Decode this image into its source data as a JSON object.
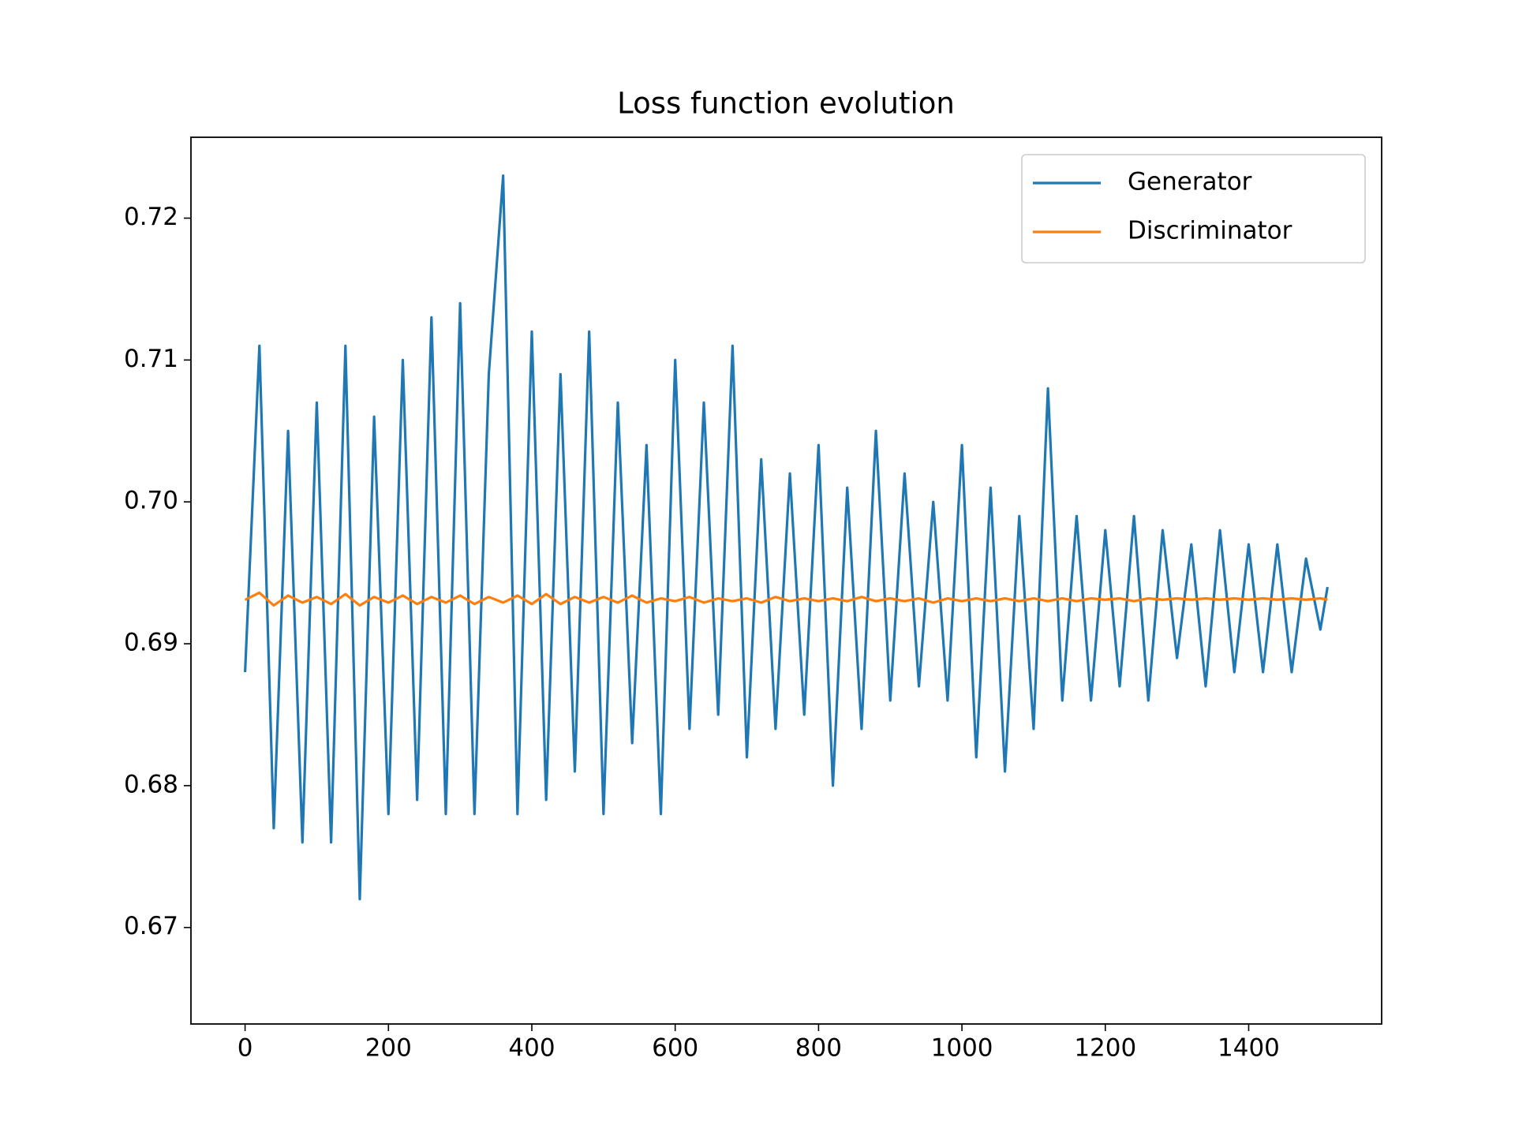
{
  "chart_data": {
    "type": "line",
    "title": "Loss function evolution",
    "x": [
      0,
      20,
      40,
      60,
      80,
      100,
      120,
      140,
      160,
      180,
      200,
      220,
      240,
      260,
      280,
      300,
      320,
      340,
      360,
      380,
      400,
      420,
      440,
      460,
      480,
      500,
      520,
      540,
      560,
      580,
      600,
      620,
      640,
      660,
      680,
      700,
      720,
      740,
      760,
      780,
      800,
      820,
      840,
      860,
      880,
      900,
      920,
      940,
      960,
      980,
      1000,
      1020,
      1040,
      1060,
      1080,
      1100,
      1120,
      1140,
      1160,
      1180,
      1200,
      1220,
      1240,
      1260,
      1280,
      1300,
      1320,
      1340,
      1360,
      1380,
      1400,
      1420,
      1440,
      1460,
      1480,
      1500,
      1510
    ],
    "series": [
      {
        "name": "Generator",
        "color": "#1f77b4",
        "values": [
          0.688,
          0.711,
          0.677,
          0.705,
          0.676,
          0.707,
          0.676,
          0.711,
          0.672,
          0.706,
          0.678,
          0.71,
          0.679,
          0.713,
          0.678,
          0.714,
          0.678,
          0.709,
          0.723,
          0.678,
          0.712,
          0.679,
          0.709,
          0.681,
          0.712,
          0.678,
          0.707,
          0.683,
          0.704,
          0.678,
          0.71,
          0.684,
          0.707,
          0.685,
          0.711,
          0.682,
          0.703,
          0.684,
          0.702,
          0.685,
          0.704,
          0.68,
          0.701,
          0.684,
          0.705,
          0.686,
          0.702,
          0.687,
          0.7,
          0.686,
          0.704,
          0.682,
          0.701,
          0.681,
          0.699,
          0.684,
          0.708,
          0.686,
          0.699,
          0.686,
          0.698,
          0.687,
          0.699,
          0.686,
          0.698,
          0.689,
          0.697,
          0.687,
          0.698,
          0.688,
          0.697,
          0.688,
          0.697,
          0.688,
          0.696,
          0.691,
          0.694
        ]
      },
      {
        "name": "Discriminator",
        "color": "#ff7f0e",
        "values": [
          0.6931,
          0.6936,
          0.6927,
          0.6934,
          0.6929,
          0.6933,
          0.6928,
          0.6935,
          0.6927,
          0.6933,
          0.6929,
          0.6934,
          0.6928,
          0.6933,
          0.6929,
          0.6934,
          0.6928,
          0.6933,
          0.6929,
          0.6934,
          0.6928,
          0.6935,
          0.6928,
          0.6933,
          0.6929,
          0.6933,
          0.6929,
          0.6934,
          0.6929,
          0.6932,
          0.693,
          0.6933,
          0.6929,
          0.6932,
          0.693,
          0.6932,
          0.6929,
          0.6933,
          0.693,
          0.6932,
          0.693,
          0.6932,
          0.693,
          0.6933,
          0.693,
          0.6932,
          0.693,
          0.6932,
          0.6929,
          0.6932,
          0.693,
          0.6932,
          0.693,
          0.6932,
          0.693,
          0.6932,
          0.693,
          0.6932,
          0.693,
          0.6932,
          0.6931,
          0.6932,
          0.693,
          0.6932,
          0.6931,
          0.6932,
          0.6931,
          0.6932,
          0.6931,
          0.6932,
          0.6931,
          0.6932,
          0.6931,
          0.6932,
          0.6931,
          0.6932,
          0.6931
        ]
      }
    ],
    "xlim": [
      -75.5,
      1585.5
    ],
    "ylim": [
      0.6632,
      0.7257
    ],
    "xticks": [
      0,
      200,
      400,
      600,
      800,
      1000,
      1200,
      1400
    ],
    "yticks": [
      0.67,
      0.68,
      0.69,
      {
        "value": 0.7,
        "label": "0.70"
      },
      0.71,
      0.72
    ],
    "legend": "upper right"
  }
}
